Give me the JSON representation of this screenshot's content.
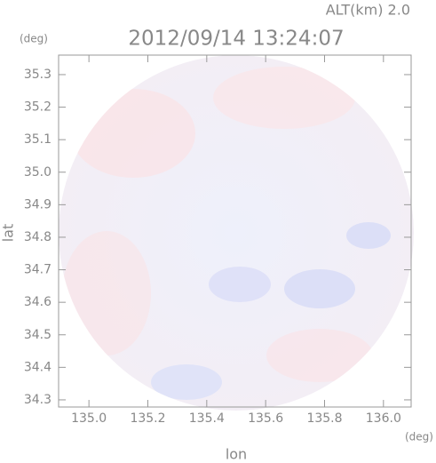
{
  "chart_data": {
    "type": "map",
    "title": "2012/09/14 13:24:07",
    "subtitle": "ALT(km) 2.0",
    "x_label": "lon",
    "y_label": "lat",
    "x_unit": "(deg)",
    "y_unit": "(deg)",
    "xlim": [
      134.897,
      136.094
    ],
    "ylim": [
      34.278,
      35.36
    ],
    "xticks": [
      {
        "value": 135.0,
        "label": "135.0"
      },
      135.2,
      135.4,
      135.6,
      135.8,
      {
        "value": 136.0,
        "label": "136.0"
      }
    ],
    "yticks": [
      34.3,
      34.4,
      34.5,
      34.6,
      34.7,
      34.8,
      34.9,
      {
        "value": 35.0,
        "label": "35.0"
      },
      35.1,
      35.2,
      35.3
    ]
  }
}
